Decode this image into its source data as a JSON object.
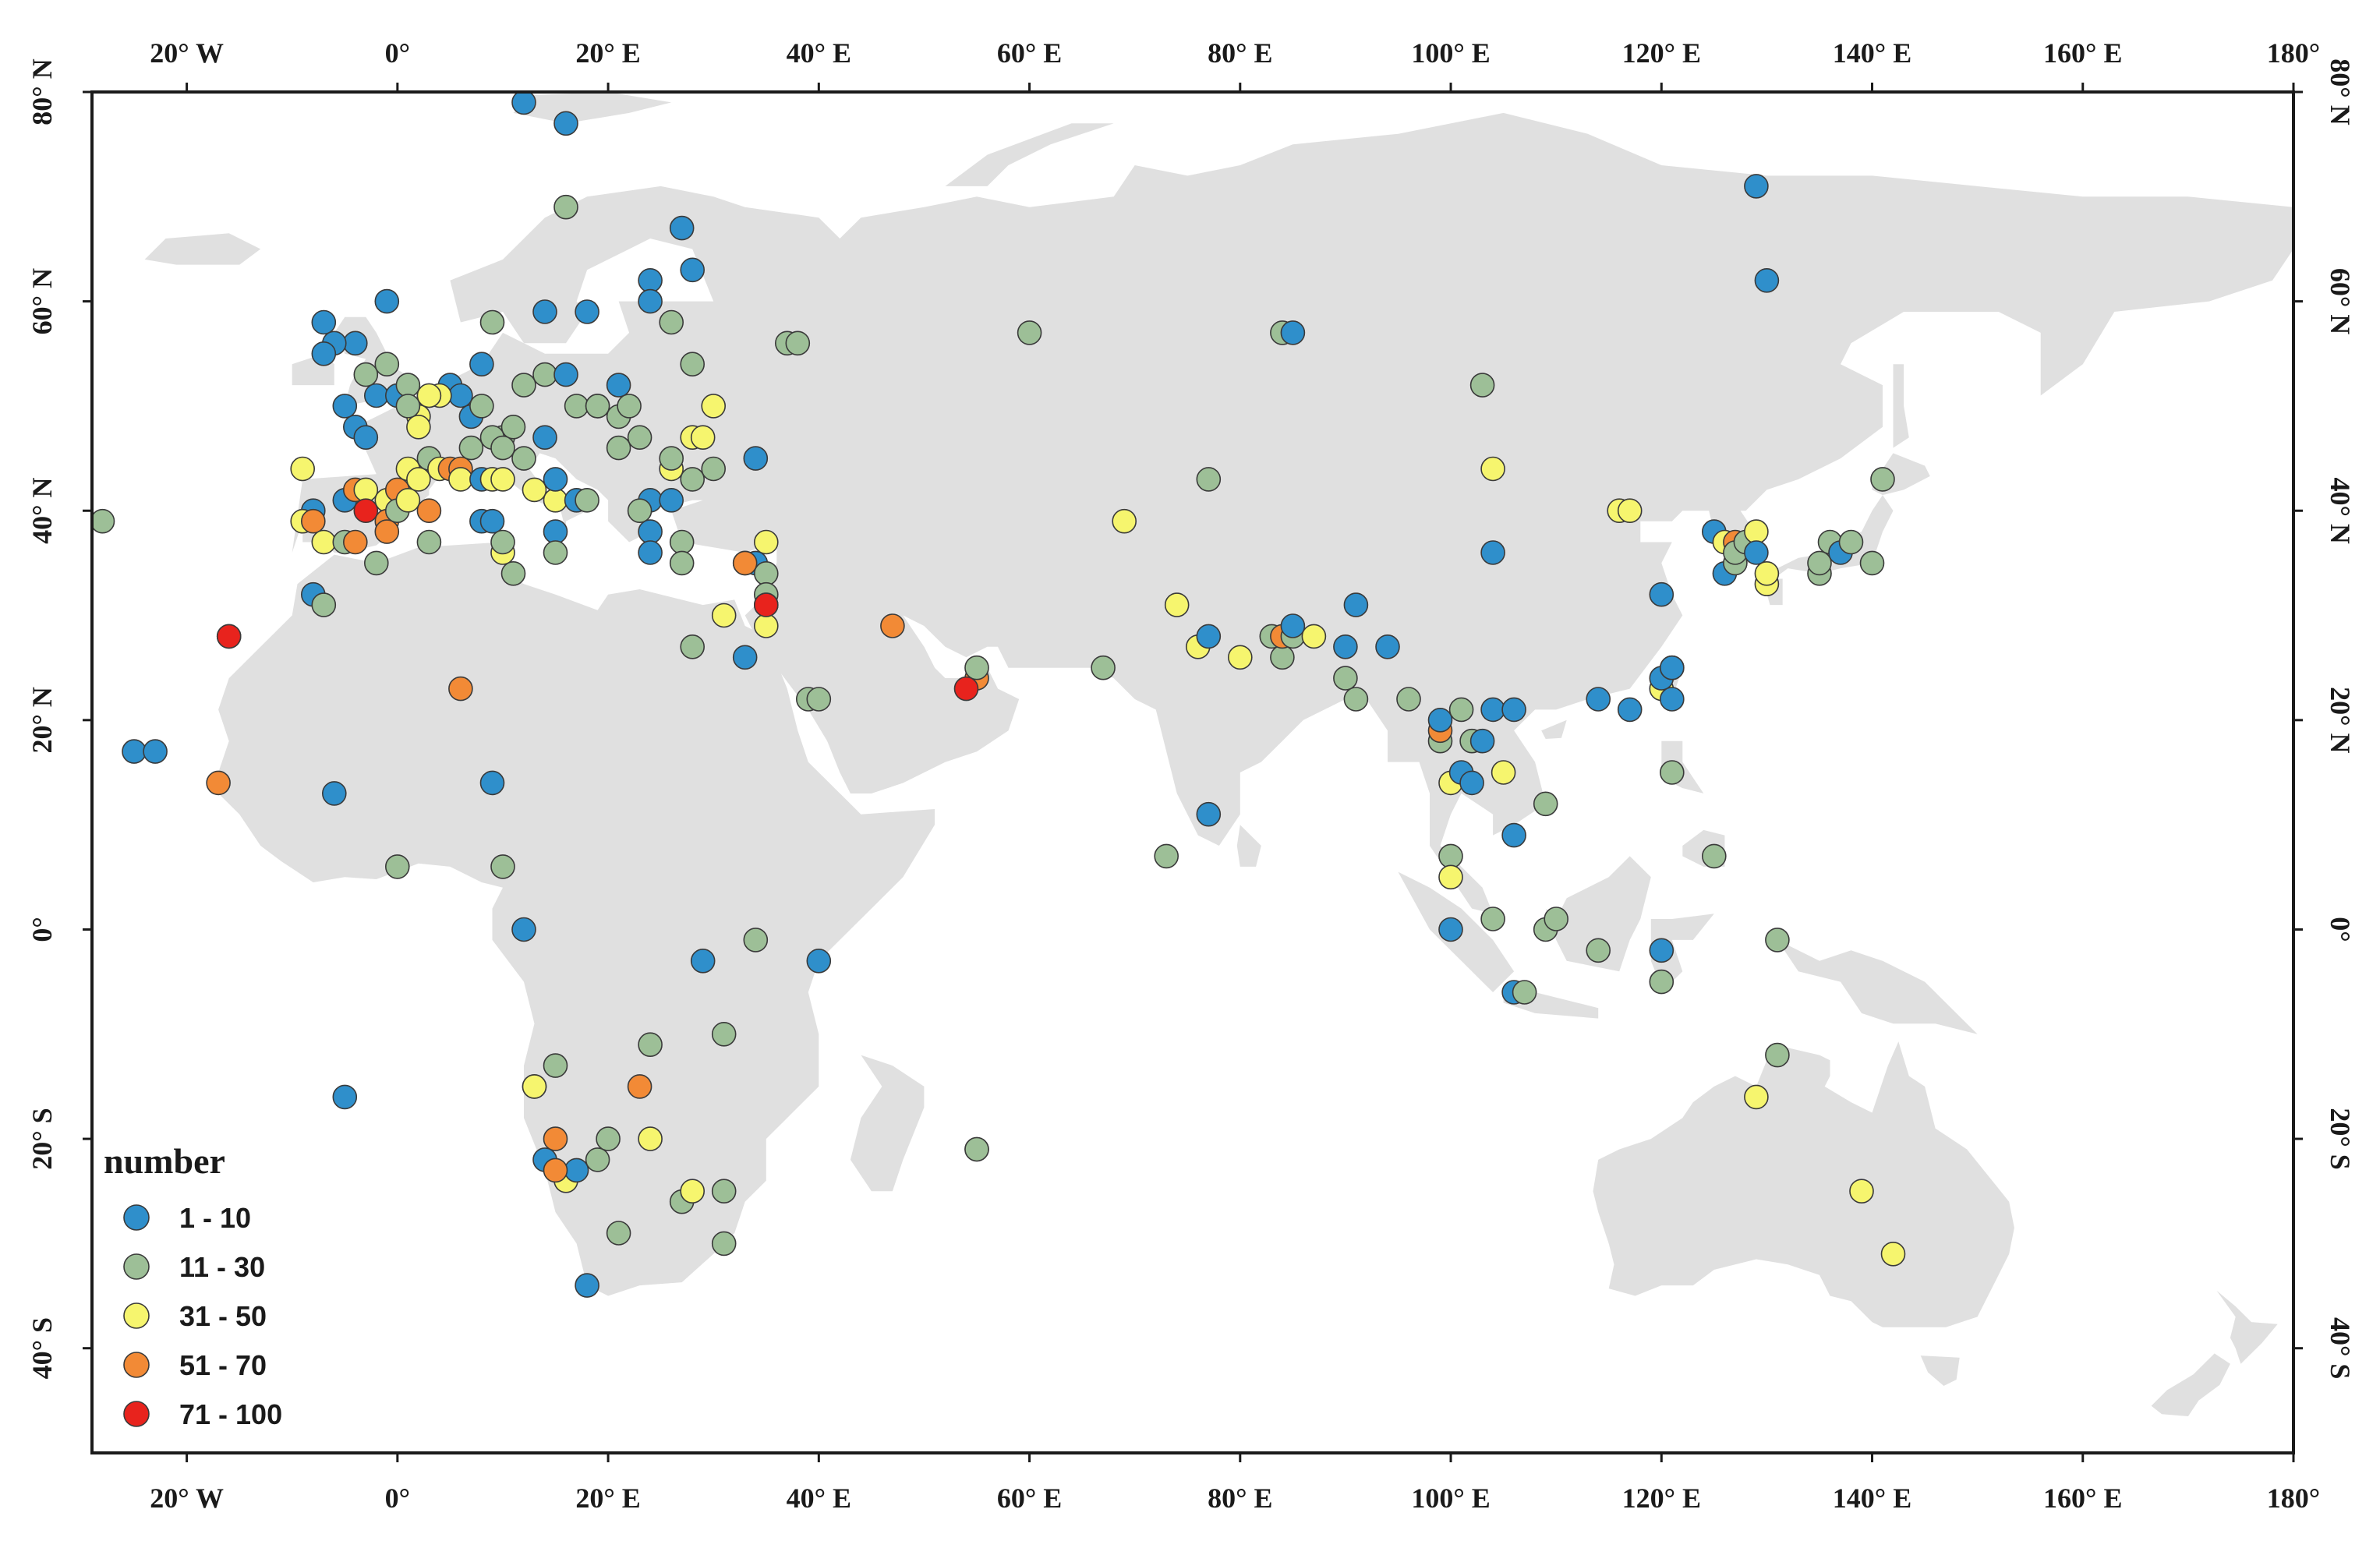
{
  "map": {
    "legend": {
      "title": "number",
      "classes": [
        {
          "label": "1 - 10",
          "color": "#2f8fcb"
        },
        {
          "label": "11 - 30",
          "color": "#9dbf97"
        },
        {
          "label": "31 - 50",
          "color": "#f6f56e"
        },
        {
          "label": "51 - 70",
          "color": "#f28a36"
        },
        {
          "label": "71 - 100",
          "color": "#e8231d"
        }
      ]
    },
    "lon_labels": [
      "20° W",
      "0°",
      "20° E",
      "40° E",
      "60° E",
      "80° E",
      "100° E",
      "120° E",
      "140° E",
      "160° E",
      "180°"
    ],
    "lon_values": [
      -20,
      0,
      20,
      40,
      60,
      80,
      100,
      120,
      140,
      160,
      180
    ],
    "lat_labels": [
      "80° N",
      "60° N",
      "40° N",
      "20° N",
      "0°",
      "20° S",
      "40° S"
    ],
    "lat_values": [
      80,
      60,
      40,
      20,
      0,
      -20,
      -40
    ],
    "extent": {
      "lon": [
        -29,
        180
      ],
      "lat": [
        -50,
        80
      ]
    },
    "land_color": "#e0e0e0",
    "sites": [
      [
        12,
        79,
        0
      ],
      [
        16,
        77,
        0
      ],
      [
        16,
        69,
        1
      ],
      [
        -28,
        39,
        1
      ],
      [
        -25,
        17,
        0
      ],
      [
        -23,
        17,
        0
      ],
      [
        -17,
        14,
        3
      ],
      [
        -16,
        28,
        4
      ],
      [
        -16,
        28,
        4
      ],
      [
        -7,
        58,
        0
      ],
      [
        -4,
        56,
        0
      ],
      [
        -6,
        56,
        0
      ],
      [
        -7,
        55,
        0
      ],
      [
        -1,
        60,
        0
      ],
      [
        -3,
        53,
        1
      ],
      [
        -2,
        51,
        0
      ],
      [
        -5,
        50,
        0
      ],
      [
        -4,
        48,
        0
      ],
      [
        -3,
        47,
        0
      ],
      [
        0,
        51,
        0
      ],
      [
        -1,
        54,
        1
      ],
      [
        1,
        52,
        1
      ],
      [
        3,
        51,
        1
      ],
      [
        5,
        52,
        0
      ],
      [
        6,
        51,
        0
      ],
      [
        7,
        49,
        0
      ],
      [
        2,
        49,
        2
      ],
      [
        4,
        51,
        2
      ],
      [
        8,
        50,
        1
      ],
      [
        9,
        58,
        1
      ],
      [
        8,
        54,
        0
      ],
      [
        10,
        47,
        1
      ],
      [
        11,
        48,
        1
      ],
      [
        12,
        52,
        1
      ],
      [
        14,
        53,
        1
      ],
      [
        16,
        53,
        0
      ],
      [
        14,
        59,
        0
      ],
      [
        18,
        59,
        0
      ],
      [
        17,
        50,
        1
      ],
      [
        19,
        50,
        1
      ],
      [
        21,
        52,
        0
      ],
      [
        21,
        49,
        1
      ],
      [
        22,
        50,
        1
      ],
      [
        21,
        46,
        1
      ],
      [
        23,
        47,
        1
      ],
      [
        24,
        62,
        0
      ],
      [
        24,
        60,
        0
      ],
      [
        26,
        58,
        1
      ],
      [
        27,
        67,
        0
      ],
      [
        28,
        63,
        0
      ],
      [
        28,
        54,
        1
      ],
      [
        28,
        47,
        2
      ],
      [
        29,
        47,
        2
      ],
      [
        30,
        50,
        2
      ],
      [
        26,
        44,
        2
      ],
      [
        26,
        45,
        1
      ],
      [
        28,
        43,
        1
      ],
      [
        30,
        44,
        1
      ],
      [
        34,
        45,
        0
      ],
      [
        37,
        56,
        1
      ],
      [
        38,
        56,
        1
      ],
      [
        24,
        41,
        0
      ],
      [
        23,
        40,
        1
      ],
      [
        26,
        41,
        0
      ],
      [
        24,
        38,
        0
      ],
      [
        24,
        36,
        0
      ],
      [
        27,
        37,
        1
      ],
      [
        27,
        35,
        1
      ],
      [
        33,
        35,
        0
      ],
      [
        34,
        35,
        0
      ],
      [
        35,
        37,
        2
      ],
      [
        35,
        34,
        1
      ],
      [
        35,
        32,
        1
      ],
      [
        35,
        31,
        0
      ],
      [
        35,
        29,
        2
      ],
      [
        35,
        31,
        4
      ],
      [
        33,
        35,
        3
      ],
      [
        31,
        30,
        2
      ],
      [
        28,
        27,
        1
      ],
      [
        33,
        26,
        0
      ],
      [
        39,
        22,
        1
      ],
      [
        40,
        22,
        1
      ],
      [
        47,
        29,
        3
      ],
      [
        55,
        24,
        3
      ],
      [
        55,
        25,
        1
      ],
      [
        54,
        23,
        4
      ],
      [
        60,
        57,
        1
      ],
      [
        -9,
        44,
        2
      ],
      [
        -8,
        40,
        0
      ],
      [
        -9,
        39,
        2
      ],
      [
        -8,
        39,
        3
      ],
      [
        -7,
        37,
        2
      ],
      [
        -5,
        37,
        1
      ],
      [
        -4,
        37,
        3
      ],
      [
        -5,
        41,
        0
      ],
      [
        -4,
        42,
        3
      ],
      [
        -3,
        42,
        2
      ],
      [
        -3,
        40,
        4
      ],
      [
        -1,
        41,
        2
      ],
      [
        -1,
        39,
        3
      ],
      [
        -1,
        38,
        3
      ],
      [
        0,
        42,
        3
      ],
      [
        0,
        40,
        1
      ],
      [
        1,
        41,
        2
      ],
      [
        1,
        44,
        2
      ],
      [
        2,
        43,
        2
      ],
      [
        3,
        40,
        3
      ],
      [
        3,
        37,
        1
      ],
      [
        3,
        45,
        1
      ],
      [
        4,
        44,
        2
      ],
      [
        5,
        44,
        3
      ],
      [
        6,
        44,
        3
      ],
      [
        6,
        43,
        2
      ],
      [
        7,
        46,
        1
      ],
      [
        8,
        43,
        0
      ],
      [
        8,
        39,
        0
      ],
      [
        9,
        39,
        0
      ],
      [
        9,
        43,
        2
      ],
      [
        9,
        47,
        1
      ],
      [
        10,
        46,
        1
      ],
      [
        10,
        43,
        2
      ],
      [
        10,
        36,
        2
      ],
      [
        10,
        37,
        1
      ],
      [
        11,
        34,
        1
      ],
      [
        12,
        45,
        1
      ],
      [
        13,
        42,
        2
      ],
      [
        14,
        47,
        0
      ],
      [
        15,
        41,
        2
      ],
      [
        15,
        43,
        0
      ],
      [
        15,
        38,
        0
      ],
      [
        15,
        36,
        1
      ],
      [
        17,
        41,
        0
      ],
      [
        18,
        41,
        1
      ],
      [
        19,
        50,
        1
      ],
      [
        2,
        48,
        2
      ],
      [
        3,
        51,
        2
      ],
      [
        1,
        50,
        1
      ],
      [
        -2,
        35,
        1
      ],
      [
        -8,
        32,
        0
      ],
      [
        -7,
        31,
        1
      ],
      [
        -6,
        13,
        0
      ],
      [
        0,
        6,
        1
      ],
      [
        6,
        23,
        3
      ],
      [
        9,
        14,
        0
      ],
      [
        10,
        6,
        1
      ],
      [
        12,
        0,
        0
      ],
      [
        29,
        -3,
        0
      ],
      [
        34,
        -1,
        1
      ],
      [
        40,
        -3,
        0
      ],
      [
        31,
        -10,
        1
      ],
      [
        24,
        -11,
        1
      ],
      [
        23,
        -15,
        3
      ],
      [
        15,
        -13,
        1
      ],
      [
        13,
        -15,
        1
      ],
      [
        13,
        -15,
        2
      ],
      [
        15,
        -20,
        3
      ],
      [
        14,
        -22,
        0
      ],
      [
        16,
        -24,
        2
      ],
      [
        17,
        -23,
        0
      ],
      [
        15,
        -23,
        3
      ],
      [
        19,
        -22,
        1
      ],
      [
        20,
        -20,
        1
      ],
      [
        24,
        -20,
        2
      ],
      [
        21,
        -29,
        1
      ],
      [
        27,
        -26,
        1
      ],
      [
        28,
        -25,
        2
      ],
      [
        31,
        -25,
        1
      ],
      [
        31,
        -30,
        1
      ],
      [
        18,
        -34,
        0
      ],
      [
        -5,
        -16,
        0
      ],
      [
        55,
        -21,
        3
      ],
      [
        55,
        -21,
        1
      ],
      [
        67,
        25,
        1
      ],
      [
        69,
        39,
        2
      ],
      [
        73,
        7,
        1
      ],
      [
        74,
        31,
        2
      ],
      [
        76,
        27,
        2
      ],
      [
        77,
        28,
        0
      ],
      [
        77,
        43,
        1
      ],
      [
        77,
        11,
        0
      ],
      [
        80,
        26,
        2
      ],
      [
        83,
        28,
        1
      ],
      [
        84,
        26,
        1
      ],
      [
        84,
        28,
        3
      ],
      [
        85,
        28,
        1
      ],
      [
        85,
        29,
        0
      ],
      [
        87,
        28,
        2
      ],
      [
        84,
        57,
        1
      ],
      [
        85,
        57,
        0
      ],
      [
        90,
        27,
        0
      ],
      [
        91,
        31,
        0
      ],
      [
        90,
        24,
        1
      ],
      [
        91,
        22,
        1
      ],
      [
        94,
        27,
        0
      ],
      [
        96,
        22,
        1
      ],
      [
        99,
        18,
        1
      ],
      [
        99,
        19,
        3
      ],
      [
        99,
        20,
        0
      ],
      [
        100,
        14,
        2
      ],
      [
        100,
        7,
        1
      ],
      [
        100,
        5,
        2
      ],
      [
        100,
        0,
        0
      ],
      [
        101,
        21,
        1
      ],
      [
        102,
        18,
        1
      ],
      [
        101,
        15,
        0
      ],
      [
        102,
        14,
        0
      ],
      [
        103,
        18,
        0
      ],
      [
        104,
        21,
        0
      ],
      [
        104,
        1,
        1
      ],
      [
        105,
        15,
        2
      ],
      [
        106,
        21,
        0
      ],
      [
        106,
        9,
        0
      ],
      [
        104,
        36,
        0
      ],
      [
        103,
        52,
        1
      ],
      [
        104,
        44,
        2
      ],
      [
        106,
        -6,
        0
      ],
      [
        107,
        -6,
        1
      ],
      [
        109,
        12,
        1
      ],
      [
        109,
        0,
        1
      ],
      [
        110,
        1,
        1
      ],
      [
        114,
        22,
        0
      ],
      [
        114,
        -2,
        1
      ],
      [
        116,
        40,
        2
      ],
      [
        117,
        40,
        2
      ],
      [
        117,
        21,
        0
      ],
      [
        120,
        32,
        0
      ],
      [
        120,
        -2,
        0
      ],
      [
        120,
        -5,
        1
      ],
      [
        120,
        23,
        2
      ],
      [
        120,
        24,
        0
      ],
      [
        121,
        22,
        0
      ],
      [
        121,
        25,
        1
      ],
      [
        121,
        15,
        1
      ],
      [
        121,
        25,
        0
      ],
      [
        125,
        38,
        0
      ],
      [
        125,
        7,
        1
      ],
      [
        126,
        34,
        0
      ],
      [
        126,
        37,
        2
      ],
      [
        127,
        37,
        3
      ],
      [
        127,
        35,
        1
      ],
      [
        127,
        36,
        1
      ],
      [
        128,
        37,
        1
      ],
      [
        129,
        38,
        2
      ],
      [
        129,
        36,
        0
      ],
      [
        129,
        71,
        0
      ],
      [
        130,
        62,
        0
      ],
      [
        130,
        33,
        2
      ],
      [
        130,
        34,
        2
      ],
      [
        131,
        -1,
        1
      ],
      [
        131,
        -12,
        1
      ],
      [
        129,
        -16,
        2
      ],
      [
        135,
        34,
        1
      ],
      [
        135,
        35,
        1
      ],
      [
        136,
        37,
        1
      ],
      [
        137,
        36,
        0
      ],
      [
        138,
        37,
        1
      ],
      [
        139,
        -25,
        2
      ],
      [
        140,
        35,
        1
      ],
      [
        141,
        43,
        1
      ],
      [
        142,
        -31,
        2
      ]
    ]
  }
}
